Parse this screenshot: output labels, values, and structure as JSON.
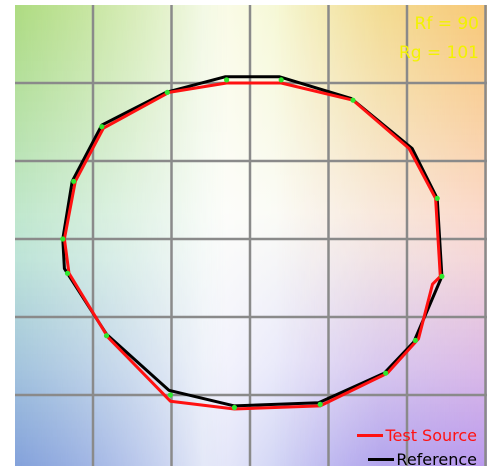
{
  "chart_data": {
    "type": "line",
    "title": "",
    "metrics": [
      {
        "label": "Rf",
        "value": 90,
        "text": "Rf = 90"
      },
      {
        "label": "Rg",
        "value": 101,
        "text": "Rg = 101"
      }
    ],
    "xlim": [
      -1.5,
      1.5
    ],
    "ylim": [
      -1.5,
      1.5
    ],
    "grid": true,
    "legend": "bottom-right",
    "series": [
      {
        "name": "Test Source",
        "color": "#ff1111",
        "closed": true,
        "points": [
          [
            -0.15,
            1.0
          ],
          [
            0.2,
            1.0
          ],
          [
            0.66,
            0.89
          ],
          [
            1.02,
            0.58
          ],
          [
            1.19,
            0.26
          ],
          [
            1.22,
            -0.24
          ],
          [
            1.17,
            -0.29
          ],
          [
            1.08,
            -0.64
          ],
          [
            0.88,
            -0.86
          ],
          [
            0.45,
            -1.07
          ],
          [
            -0.1,
            -1.09
          ],
          [
            -0.51,
            -1.04
          ],
          [
            -0.91,
            -0.63
          ],
          [
            -1.16,
            -0.22
          ],
          [
            -1.19,
            0.0
          ],
          [
            -1.12,
            0.37
          ],
          [
            -0.94,
            0.71
          ],
          [
            -0.52,
            0.94
          ]
        ]
      },
      {
        "name": "Reference",
        "color": "#000000",
        "closed": true,
        "points": [
          [
            -0.16,
            1.04
          ],
          [
            0.19,
            1.04
          ],
          [
            0.65,
            0.9
          ],
          [
            1.04,
            0.58
          ],
          [
            1.2,
            0.26
          ],
          [
            1.23,
            -0.24
          ],
          [
            1.05,
            -0.66
          ],
          [
            0.86,
            -0.86
          ],
          [
            0.44,
            -1.05
          ],
          [
            -0.1,
            -1.07
          ],
          [
            -0.52,
            -0.97
          ],
          [
            -0.92,
            -0.61
          ],
          [
            -1.19,
            -0.19
          ],
          [
            -1.2,
            0.0
          ],
          [
            -1.14,
            0.37
          ],
          [
            -0.95,
            0.73
          ],
          [
            -0.54,
            0.94
          ]
        ]
      }
    ],
    "markers": {
      "color": "#2ee82e",
      "points": [
        [
          -0.15,
          1.02
        ],
        [
          0.2,
          1.02
        ],
        [
          0.66,
          0.89
        ],
        [
          1.2,
          0.26
        ],
        [
          1.23,
          -0.24
        ],
        [
          1.06,
          -0.65
        ],
        [
          0.87,
          -0.86
        ],
        [
          0.45,
          -1.06
        ],
        [
          -0.1,
          -1.08
        ],
        [
          -0.51,
          -1.0
        ],
        [
          -0.92,
          -0.62
        ],
        [
          -1.17,
          -0.22
        ],
        [
          -1.2,
          0.0
        ],
        [
          -1.13,
          0.37
        ],
        [
          -0.95,
          0.72
        ],
        [
          -0.53,
          0.94
        ]
      ]
    }
  },
  "legend": {
    "test_label": "Test Source",
    "ref_label": "Reference"
  }
}
